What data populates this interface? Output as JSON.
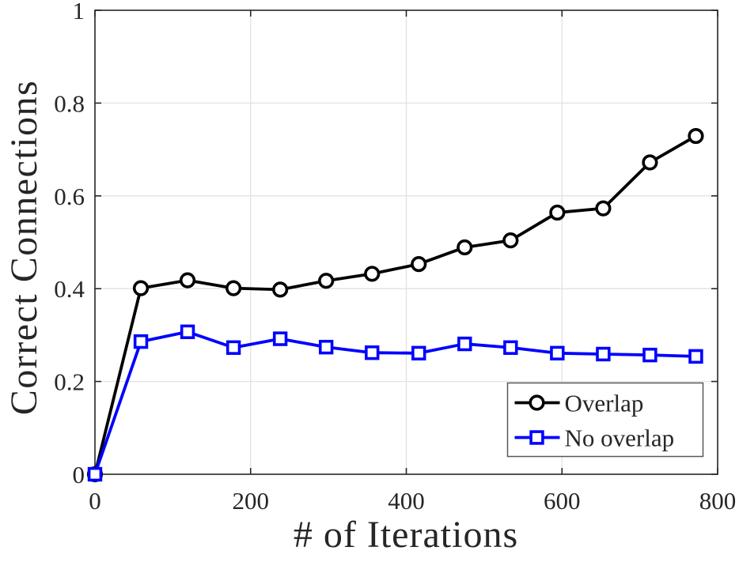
{
  "figure": {
    "background": "#ffffff",
    "axes_color": "#262626",
    "grid_color": "#e2e2e2",
    "legend_border_color": "#595959"
  },
  "chart_data": {
    "type": "line",
    "title": "",
    "xlabel": "# of Iterations",
    "ylabel": "Correct Connections",
    "xlim": [
      0,
      800
    ],
    "ylim": [
      0,
      1
    ],
    "xticks": [
      0,
      200,
      400,
      600,
      800
    ],
    "xtick_labels": [
      "0",
      "200",
      "400",
      "600",
      "800"
    ],
    "yticks": [
      0,
      0.2,
      0.4,
      0.6,
      0.8,
      1
    ],
    "ytick_labels": [
      "0",
      "0.2",
      "0.4",
      "0.6",
      "0.8",
      "1"
    ],
    "grid": true,
    "legend": {
      "position": "bottom-right",
      "entries": [
        "Overlap",
        "No overlap"
      ]
    },
    "x": [
      0,
      59,
      119,
      178,
      238,
      297,
      356,
      416,
      475,
      534,
      594,
      653,
      713,
      772
    ],
    "series": [
      {
        "name": "Overlap",
        "color": "#000000",
        "marker": "circle",
        "values": [
          0,
          0.401,
          0.418,
          0.401,
          0.398,
          0.417,
          0.432,
          0.453,
          0.489,
          0.504,
          0.564,
          0.573,
          0.672,
          0.729
        ]
      },
      {
        "name": "No overlap",
        "color": "#0000ff",
        "marker": "square",
        "values": [
          0,
          0.286,
          0.307,
          0.273,
          0.292,
          0.274,
          0.262,
          0.261,
          0.281,
          0.273,
          0.261,
          0.259,
          0.257,
          0.254
        ]
      }
    ]
  }
}
